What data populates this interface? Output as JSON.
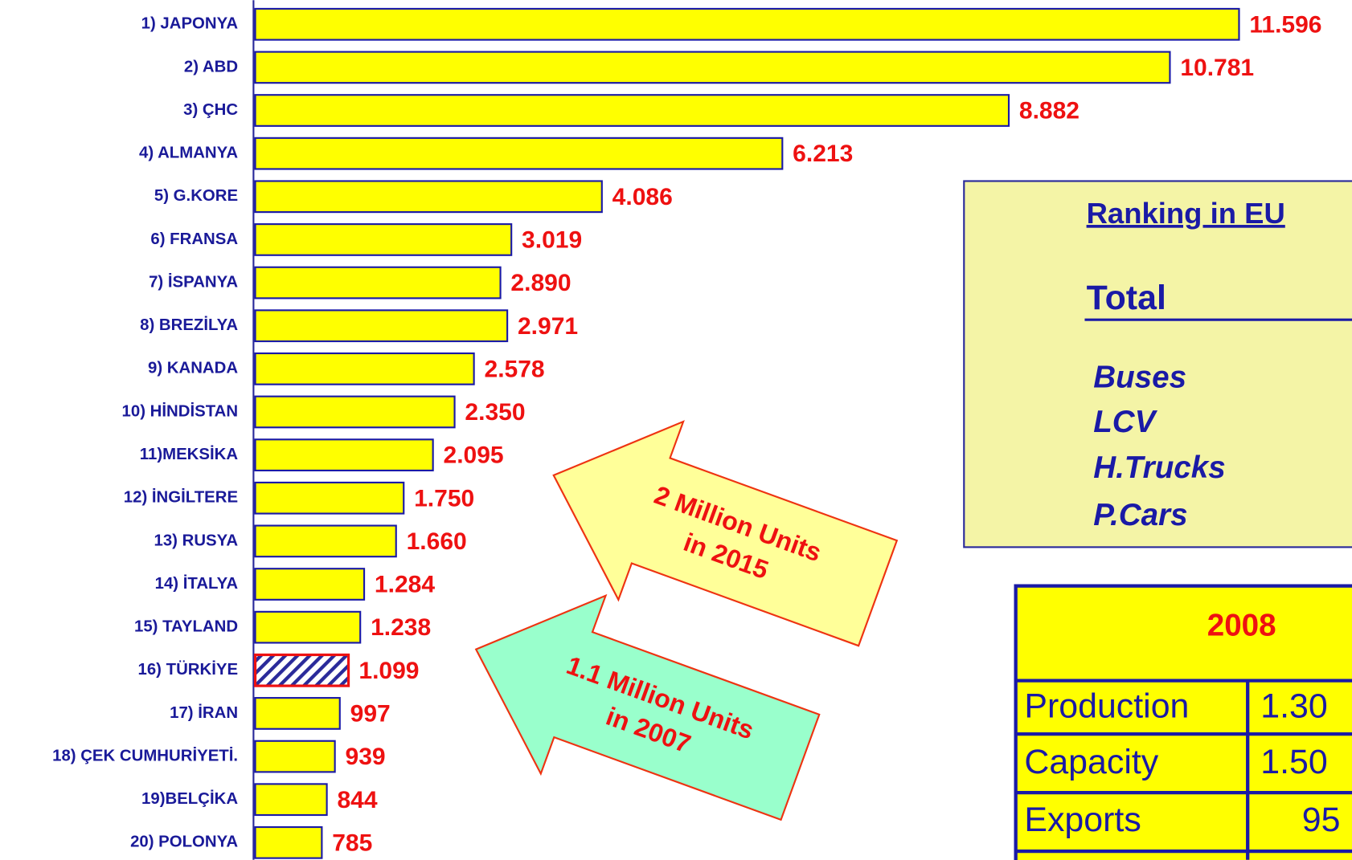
{
  "chart_data": {
    "type": "bar",
    "orientation": "horizontal",
    "categories": [
      "1) JAPONYA",
      "2)  ABD",
      "3) ÇHC",
      "4)  ALMANYA",
      "5)  G.KORE",
      "6)  FRANSA",
      "7)  İSPANYA",
      "8)  BREZİLYA",
      "9)  KANADA",
      "10) HİNDİSTAN",
      "11)MEKSİKA",
      "12) İNGİLTERE",
      "13) RUSYA",
      "14) İTALYA",
      "15) TAYLAND",
      "16) TÜRKİYE",
      "17) İRAN",
      "18) ÇEK CUMHURİYETİ.",
      "19)BELÇİKA",
      "20) POLONYA"
    ],
    "values": [
      11596,
      10781,
      8882,
      6213,
      4086,
      3019,
      2890,
      2971,
      2578,
      2350,
      2095,
      1750,
      1660,
      1284,
      1238,
      1099,
      997,
      939,
      844,
      785
    ],
    "value_labels": [
      "11.596",
      "10.781",
      "8.882",
      "6.213",
      "4.086",
      "3.019",
      "2.890",
      "2.971",
      "2.578",
      "2.350",
      "2.095",
      "1.750",
      "1.660",
      "1.284",
      "1.238",
      "1.099",
      "997",
      "939",
      "844",
      "785"
    ],
    "color": "#ffff00",
    "highlight": 15,
    "highlight_color": "#2a2a9a",
    "value_label_color": "#ee1111",
    "annotations": [
      {
        "lines": [
          "2 Million Units",
          "in 2015"
        ]
      },
      {
        "lines": [
          "1.1 Million Units",
          "in 2007"
        ]
      }
    ]
  },
  "eu_box": {
    "title": "Ranking in EU",
    "total": "Total",
    "items": [
      "Buses",
      "LCV",
      "H.Trucks",
      "P.Cars"
    ]
  },
  "table": {
    "header": "2008",
    "rows": [
      [
        "Production",
        "1.30"
      ],
      [
        "Capacity",
        "1.50"
      ],
      [
        "Exports",
        "95"
      ]
    ]
  }
}
